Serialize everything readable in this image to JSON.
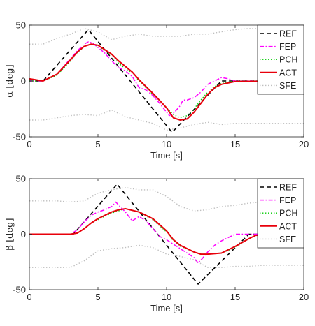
{
  "chart_data": [
    {
      "type": "line",
      "xlabel": "Time [s]",
      "ylabel": "α [deg]",
      "xlim": [
        0,
        20
      ],
      "ylim": [
        -50,
        50
      ],
      "xticks": [
        "0",
        "5",
        "10",
        "15",
        "20"
      ],
      "yticks": [
        "50",
        "0",
        "-50"
      ],
      "legend_position": "top-right",
      "series": [
        {
          "name": "REF",
          "color": "#000000",
          "style": "dashed",
          "x": [
            0,
            1,
            4.3,
            10.4,
            14,
            20
          ],
          "y": [
            0,
            0,
            46,
            -46,
            0,
            0
          ]
        },
        {
          "name": "FEP",
          "color": "#ff00ff",
          "style": "dashdot",
          "x": [
            0,
            1,
            2,
            3,
            3.5,
            4,
            4.3,
            4.6,
            5,
            5.5,
            6,
            6.5,
            7,
            7.5,
            8,
            8.5,
            9,
            9.5,
            10,
            10.2,
            10.5,
            11,
            11.2,
            11.5,
            12,
            12.5,
            13,
            13.5,
            14,
            14.5,
            15,
            20
          ],
          "y": [
            0,
            0,
            6,
            20,
            27,
            33,
            35,
            34,
            30,
            25,
            18,
            12,
            9,
            4,
            -6,
            -8,
            -13,
            -20,
            -28,
            -31,
            -29,
            -22,
            -17,
            -17,
            -15,
            -10,
            -3,
            0,
            3,
            2,
            0,
            0
          ]
        },
        {
          "name": "PCH",
          "color": "#00cc00",
          "style": "dotted",
          "x": [
            0,
            1,
            2,
            3,
            3.5,
            4,
            4.5,
            5,
            5.5,
            6,
            6.5,
            7,
            7.5,
            8,
            9,
            10,
            10.5,
            11,
            11.5,
            12,
            12.5,
            13,
            13.5,
            14,
            15,
            20
          ],
          "y": [
            0,
            0,
            5,
            18,
            25,
            31,
            33,
            31,
            27,
            23,
            16,
            11,
            7,
            0,
            -12,
            -24,
            -30,
            -33,
            -31,
            -25,
            -17,
            -10,
            -5,
            -2,
            0,
            0
          ]
        },
        {
          "name": "ACT",
          "color": "#e8000b",
          "style": "solid",
          "x": [
            0,
            1,
            2,
            3,
            3.5,
            4,
            4.5,
            5,
            5.5,
            6,
            6.5,
            7,
            7.5,
            8,
            9,
            10,
            10.5,
            11,
            11.5,
            12,
            12.5,
            13,
            13.5,
            14,
            15,
            20
          ],
          "y": [
            2,
            0,
            6,
            19,
            26,
            31,
            33,
            32,
            28,
            24,
            18,
            13,
            8,
            1,
            -11,
            -24,
            -33,
            -35,
            -34,
            -28,
            -20,
            -12,
            -6,
            -3,
            -0.5,
            0
          ]
        },
        {
          "name": "SFE",
          "color": "#bfbfbf",
          "style": "dotted",
          "x": [
            0,
            1,
            2,
            3,
            4,
            5,
            6,
            7,
            8,
            9,
            10,
            11,
            12,
            13,
            14,
            15,
            16,
            17,
            18,
            19,
            20
          ],
          "y": [
            33,
            33,
            38,
            42,
            47,
            44,
            37,
            40,
            42,
            40,
            40,
            40,
            42,
            42,
            44,
            46,
            47,
            47,
            47,
            49,
            49
          ]
        },
        {
          "name": "",
          "color": "#bfbfbf",
          "style": "dotted",
          "x": [
            0,
            1,
            2,
            3,
            4,
            5,
            6,
            7,
            8,
            9,
            10,
            11,
            12,
            13,
            14,
            15,
            16,
            17,
            18,
            19,
            20
          ],
          "y": [
            -35,
            -35,
            -33,
            -31,
            -30,
            -31,
            -26,
            -32,
            -35,
            -38,
            -44,
            -42,
            -39,
            -37,
            -39,
            -38,
            -38,
            -38,
            -38,
            -38,
            -38
          ]
        }
      ]
    },
    {
      "type": "line",
      "xlabel": "Time [s]",
      "ylabel": "β [deg]",
      "xlim": [
        0,
        20
      ],
      "ylim": [
        -50,
        50
      ],
      "xticks": [
        "0",
        "5",
        "10",
        "15",
        "20"
      ],
      "yticks": [
        "50",
        "0",
        "-50"
      ],
      "legend_position": "top-right",
      "series": [
        {
          "name": "REF",
          "color": "#000000",
          "style": "dashed",
          "x": [
            0,
            3.2,
            6.4,
            12.3,
            16,
            20
          ],
          "y": [
            0,
            0,
            45,
            -45,
            0,
            0
          ]
        },
        {
          "name": "FEP",
          "color": "#ff00ff",
          "style": "dashdot",
          "x": [
            0,
            3,
            3.5,
            4,
            4.5,
            5,
            5.5,
            6,
            6.3,
            6.6,
            7,
            7.5,
            8,
            8.5,
            9,
            9.5,
            10,
            10.5,
            11,
            11.5,
            12,
            12.3,
            12.6,
            13,
            13.5,
            14,
            15,
            16,
            20
          ],
          "y": [
            0,
            0,
            4,
            11,
            17,
            20,
            22,
            25,
            29,
            25,
            20,
            12,
            16,
            12,
            5,
            -2,
            -5,
            -9,
            -13,
            -17,
            -21,
            -26,
            -22,
            -16,
            -10,
            -6,
            0,
            0,
            0
          ]
        },
        {
          "name": "PCH",
          "color": "#00cc00",
          "style": "dotted",
          "x": [
            0,
            3,
            3.5,
            4,
            4.5,
            5,
            5.5,
            6,
            6.5,
            7,
            8,
            9,
            10,
            10.5,
            11,
            12,
            12.5,
            13,
            14,
            15,
            16,
            16.5,
            20
          ],
          "y": [
            0,
            0,
            1,
            5,
            10,
            13,
            16,
            19,
            21,
            23,
            20,
            13,
            2,
            -6,
            -11,
            -16,
            -18,
            -18,
            -17,
            -12,
            -4,
            -1,
            0
          ]
        },
        {
          "name": "ACT",
          "color": "#e8000b",
          "style": "solid",
          "x": [
            0,
            3,
            3.5,
            4,
            4.5,
            5,
            5.5,
            6,
            6.5,
            7,
            8,
            9,
            10,
            10.5,
            11,
            12,
            12.5,
            13,
            14,
            15,
            16,
            16.5,
            20
          ],
          "y": [
            0,
            0,
            1,
            5,
            10,
            14,
            17,
            20,
            22,
            23,
            20,
            14,
            3,
            -5,
            -10,
            -16,
            -18,
            -18,
            -17,
            -11,
            -4,
            -1,
            0
          ]
        },
        {
          "name": "SFE",
          "color": "#bfbfbf",
          "style": "dotted",
          "x": [
            0,
            1,
            2,
            3,
            4,
            5,
            6,
            7,
            8,
            9,
            10,
            11,
            12,
            13,
            14,
            15,
            16,
            17,
            18,
            19,
            20
          ],
          "y": [
            30,
            30,
            30,
            29,
            30,
            37,
            40,
            42,
            40,
            40,
            34,
            25,
            21,
            22,
            25,
            26,
            28,
            29,
            30,
            30,
            31
          ]
        },
        {
          "name": "",
          "color": "#bfbfbf",
          "style": "dotted",
          "x": [
            0,
            1,
            2,
            3,
            4,
            5,
            6,
            7,
            8,
            9,
            10,
            11,
            12,
            13,
            14,
            15,
            16,
            17,
            18,
            19,
            20
          ],
          "y": [
            -30,
            -30,
            -30,
            -30,
            -24,
            -15,
            -13,
            -12,
            -10,
            -12,
            -18,
            -20,
            -23,
            -30,
            -30,
            -29,
            -29,
            -28,
            -28,
            -28,
            -28
          ]
        }
      ]
    }
  ]
}
